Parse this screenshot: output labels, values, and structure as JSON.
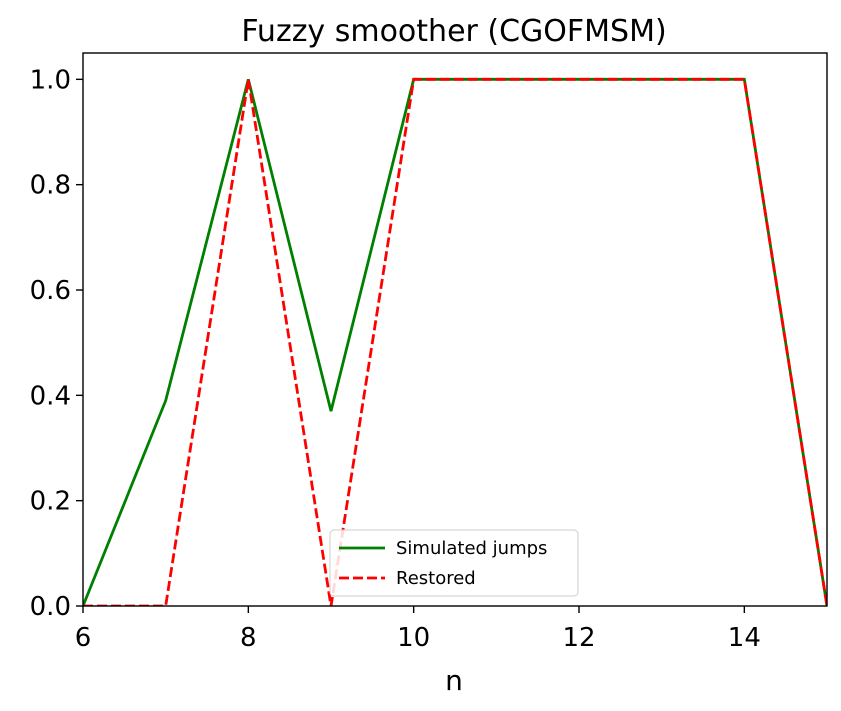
{
  "chart_data": {
    "type": "line",
    "title": "Fuzzy smoother (CGOFMSM)",
    "xlabel": "n",
    "ylabel": "",
    "xlim": [
      6,
      15
    ],
    "ylim": [
      0,
      1.05
    ],
    "xticks": [
      6,
      8,
      10,
      12,
      14
    ],
    "xtick_labels": [
      "6",
      "8",
      "10",
      "12",
      "14"
    ],
    "yticks": [
      0.0,
      0.2,
      0.4,
      0.6,
      0.8,
      1.0
    ],
    "ytick_labels": [
      "0.0",
      "0.2",
      "0.4",
      "0.6",
      "0.8",
      "1.0"
    ],
    "grid": false,
    "legend_position": "bottom-center",
    "series": [
      {
        "name": "Simulated jumps",
        "color": "#008000",
        "style": "solid",
        "x": [
          6,
          7,
          8,
          9,
          10,
          11,
          12,
          13,
          14,
          15
        ],
        "y": [
          0.0,
          0.39,
          1.0,
          0.37,
          1.0,
          1.0,
          1.0,
          1.0,
          1.0,
          0.0
        ]
      },
      {
        "name": "Restored",
        "color": "#ff0000",
        "style": "dashed",
        "x": [
          6,
          7,
          8,
          9,
          10,
          11,
          12,
          13,
          14,
          15
        ],
        "y": [
          0.0,
          0.0,
          1.0,
          0.0,
          1.0,
          1.0,
          1.0,
          1.0,
          1.0,
          0.0
        ]
      }
    ]
  }
}
